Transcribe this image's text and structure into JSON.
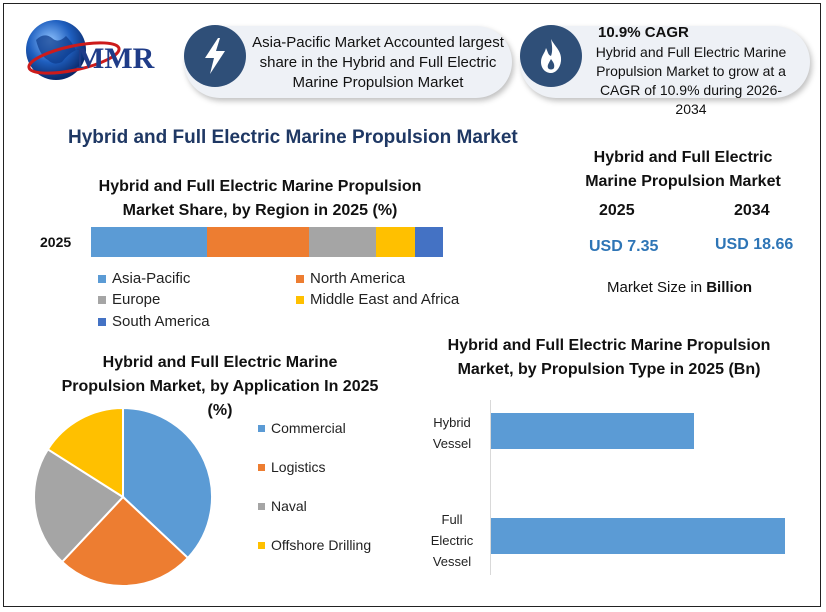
{
  "logo": {
    "text": "MMR"
  },
  "banner1": {
    "text": "Asia-Pacific Market Accounted largest share in the Hybrid and Full Electric Marine Propulsion Market",
    "icon": "lightning-icon"
  },
  "banner2": {
    "title": "10.9% CAGR",
    "text": "Hybrid and Full Electric Marine Propulsion Market to grow at a CAGR of 10.9% during 2026-2034",
    "icon": "flame-icon"
  },
  "main_title": "Hybrid and Full Electric Marine Propulsion Market",
  "market_size": {
    "title": "Hybrid and Full Electric Marine Propulsion Market",
    "year1": "2025",
    "year2": "2034",
    "value1": "USD 7.35",
    "value2": "USD 18.66",
    "note_prefix": "Market Size in ",
    "note_bold": "Billion"
  },
  "colors": {
    "blue": "#5b9bd5",
    "orange": "#ed7d31",
    "gray": "#a5a5a5",
    "yellow": "#ffc000",
    "darkblue": "#4472c4"
  },
  "chart_data": [
    {
      "type": "bar",
      "orientation": "horizontal-stacked",
      "title": "Hybrid and Full Electric Marine Propulsion Market Share, by Region in 2025 (%)",
      "categories": [
        "2025"
      ],
      "series": [
        {
          "name": "Asia-Pacific",
          "values": [
            33
          ],
          "color": "#5b9bd5"
        },
        {
          "name": "North America",
          "values": [
            29
          ],
          "color": "#ed7d31"
        },
        {
          "name": "Europe",
          "values": [
            19
          ],
          "color": "#a5a5a5"
        },
        {
          "name": "Middle East and Africa",
          "values": [
            11
          ],
          "color": "#ffc000"
        },
        {
          "name": "South America",
          "values": [
            8
          ],
          "color": "#4472c4"
        }
      ],
      "legend": "bottom"
    },
    {
      "type": "pie",
      "title": "Hybrid and Full Electric Marine Propulsion Market, by Application In 2025 (%)",
      "slices": [
        {
          "name": "Commercial",
          "value": 37,
          "color": "#5b9bd5"
        },
        {
          "name": "Logistics",
          "value": 25,
          "color": "#ed7d31"
        },
        {
          "name": "Naval",
          "value": 22,
          "color": "#a5a5a5"
        },
        {
          "name": "Offshore Drilling",
          "value": 16,
          "color": "#ffc000"
        }
      ],
      "legend": "right"
    },
    {
      "type": "bar",
      "orientation": "horizontal",
      "title": "Hybrid and Full Electric Marine Propulsion Market, by Propulsion Type in 2025 (Bn)",
      "categories": [
        [
          "Hybrid",
          "Vessel"
        ],
        [
          "Full",
          "Electric",
          "Vessel"
        ]
      ],
      "values": [
        3.0,
        4.35
      ],
      "xlim": [
        0,
        4.5
      ],
      "color": "#5b9bd5"
    }
  ]
}
